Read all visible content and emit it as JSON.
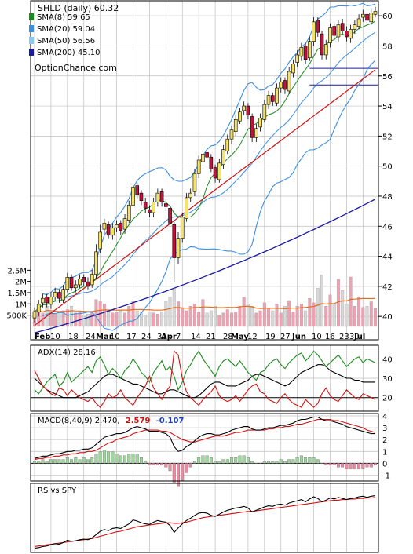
{
  "main": {
    "title": "SHLD (daily) 60.32",
    "watermark": "OptionChance.com",
    "legend": [
      {
        "label": "SMA(8) 59.65",
        "color": "#1a8a1a"
      },
      {
        "label": "SMA(20) 59.04",
        "color": "#3c8ee0"
      },
      {
        "label": "SMA(50) 56.56",
        "color": "#8ec8f0"
      },
      {
        "label": "SMA(200) 45.10",
        "color": "#1a1aa0"
      }
    ]
  },
  "colors": {
    "grid": "#bfbfbf",
    "border": "#000000",
    "sma8": "#1a8a1a",
    "sma20": "#3c8ee0",
    "sma50": "#8ec8f0",
    "sma200": "#1a1aa0",
    "bollinger": "#3c8ee0",
    "ema": "#d01010",
    "volMa": "#e07020",
    "upCandle": "#f4e26a",
    "downCandle": "#c0143c",
    "volUp": "#f0a0b0",
    "volDown": "#d8d8d8",
    "adx": "#000000",
    "plusDI": "#1a8a1a",
    "minusDI": "#d01010",
    "macdUp": "#9ed69e",
    "macdDown": "#e88aa0"
  },
  "chart_data": [
    {
      "type": "candlestick",
      "name": "price",
      "ylim": [
        38.6,
        61.0
      ],
      "y_ticks": [
        40,
        42,
        44,
        46,
        48,
        50,
        52,
        54,
        56,
        58,
        60
      ],
      "volume_ylim": [
        0,
        3000000
      ],
      "volume_ticks": [
        {
          "value": 500000,
          "label": "500K"
        },
        {
          "value": 1000000,
          "label": "1M"
        },
        {
          "value": 1500000,
          "label": "1.5M"
        },
        {
          "value": 2000000,
          "label": "2M"
        },
        {
          "value": 2500000,
          "label": "2.5M"
        }
      ],
      "x_labels": [
        "Feb",
        "10",
        "18",
        "24",
        "Mar",
        "10",
        "17",
        "24",
        "31",
        "Apr",
        "7",
        "14",
        "21",
        "28",
        "May",
        "12",
        "19",
        "27",
        "Jun",
        "10",
        "16",
        "23",
        "30",
        "Jul"
      ],
      "horizontal_levels": [
        56.5,
        55.4
      ],
      "close": [
        40.3,
        40.8,
        41.2,
        40.9,
        41.3,
        41.6,
        41.2,
        41.8,
        42.6,
        41.9,
        42.1,
        42.5,
        42.3,
        42.0,
        42.8,
        44.3,
        45.6,
        46.2,
        45.4,
        45.9,
        46.1,
        45.7,
        46.5,
        47.4,
        48.6,
        48.1,
        47.7,
        47.2,
        46.9,
        47.6,
        48.2,
        47.6,
        47.3,
        46.2,
        43.9,
        45.2,
        46.6,
        47.9,
        48.2,
        49.5,
        50.4,
        50.8,
        50.6,
        49.8,
        49.2,
        50.2,
        51.1,
        51.8,
        52.4,
        53.1,
        53.6,
        54.0,
        53.4,
        51.9,
        52.5,
        53.2,
        54.1,
        54.7,
        54.3,
        55.2,
        55.6,
        55.1,
        56.3,
        56.8,
        57.4,
        57.9,
        57.1,
        58.3,
        59.6,
        58.9,
        57.4,
        58.1,
        59.2,
        58.7,
        59.4,
        59.0,
        58.6,
        59.1,
        59.4,
        59.8,
        60.1,
        59.7,
        60.2,
        60.3
      ],
      "open": [
        39.9,
        40.3,
        40.9,
        41.3,
        40.8,
        41.3,
        41.6,
        41.1,
        41.8,
        42.6,
        41.9,
        42.1,
        42.6,
        42.3,
        42.1,
        42.8,
        44.5,
        45.8,
        46.1,
        45.4,
        45.9,
        46.2,
        45.8,
        46.4,
        47.4,
        48.7,
        48.2,
        47.6,
        47.1,
        46.9,
        47.6,
        48.3,
        47.5,
        47.2,
        46.1,
        43.9,
        45.2,
        46.5,
        47.9,
        48.3,
        49.5,
        50.3,
        50.9,
        50.6,
        49.9,
        49.1,
        50.1,
        51.0,
        51.8,
        52.3,
        53.0,
        53.7,
        54.0,
        53.3,
        51.9,
        52.6,
        53.1,
        54.1,
        54.7,
        54.2,
        55.2,
        55.7,
        55.0,
        56.2,
        56.9,
        57.3,
        58.0,
        57.2,
        58.3,
        59.7,
        58.8,
        57.4,
        58.2,
        59.3,
        58.6,
        59.5,
        59.0,
        58.5,
        59.1,
        59.3,
        59.9,
        60.1,
        59.6,
        60.1
      ],
      "high": [
        40.6,
        41.1,
        41.5,
        41.5,
        41.6,
        41.9,
        41.8,
        42.1,
        42.9,
        42.8,
        42.4,
        42.8,
        42.8,
        42.6,
        43.1,
        44.8,
        46.1,
        46.5,
        46.3,
        46.2,
        46.4,
        46.4,
        46.8,
        47.7,
        48.9,
        48.9,
        48.4,
        47.9,
        47.4,
        47.9,
        48.5,
        48.5,
        47.8,
        47.4,
        46.3,
        45.6,
        46.9,
        48.2,
        48.5,
        49.8,
        50.7,
        51.1,
        51.1,
        50.8,
        50.1,
        50.5,
        51.4,
        52.1,
        52.7,
        53.4,
        53.9,
        54.3,
        54.2,
        53.5,
        52.8,
        53.5,
        54.4,
        55.0,
        54.9,
        55.5,
        55.9,
        55.9,
        56.6,
        57.1,
        57.7,
        58.2,
        58.2,
        58.6,
        59.9,
        59.9,
        59.0,
        58.4,
        59.5,
        59.5,
        59.7,
        59.8,
        59.3,
        59.4,
        59.7,
        60.1,
        60.4,
        60.6,
        60.5,
        60.6
      ],
      "low": [
        39.6,
        40.0,
        40.6,
        40.6,
        40.5,
        41.0,
        40.9,
        40.9,
        41.6,
        41.7,
        41.6,
        41.9,
        42.0,
        41.8,
        41.9,
        42.5,
        44.2,
        45.5,
        45.2,
        45.1,
        45.6,
        45.4,
        45.5,
        46.2,
        47.1,
        47.8,
        47.4,
        46.9,
        46.6,
        46.6,
        47.3,
        47.3,
        47.0,
        46.0,
        42.3,
        43.5,
        44.9,
        46.3,
        47.6,
        48.0,
        49.2,
        50.0,
        50.3,
        49.6,
        48.9,
        48.9,
        49.8,
        50.8,
        51.5,
        52.0,
        52.8,
        53.4,
        53.1,
        51.6,
        51.6,
        52.3,
        52.9,
        53.8,
        54.0,
        54.0,
        54.9,
        54.8,
        54.8,
        55.9,
        56.6,
        57.0,
        56.8,
        57.0,
        58.0,
        58.6,
        57.1,
        57.1,
        57.9,
        58.4,
        58.3,
        58.8,
        58.3,
        58.2,
        58.8,
        59.1,
        59.6,
        59.4,
        59.4,
        59.9
      ],
      "volume": [
        700000,
        650000,
        600000,
        900000,
        650000,
        550000,
        600000,
        700000,
        750000,
        900000,
        600000,
        650000,
        500000,
        550000,
        650000,
        1200000,
        1100000,
        1000000,
        700000,
        600000,
        650000,
        700000,
        600000,
        900000,
        1100000,
        700000,
        600000,
        500000,
        650000,
        600000,
        550000,
        650000,
        1100000,
        1300000,
        1700000,
        1100000,
        800000,
        700000,
        900000,
        1000000,
        650000,
        1200000,
        600000,
        700000,
        900000,
        500000,
        600000,
        750000,
        600000,
        650000,
        900000,
        1300000,
        1000000,
        900000,
        600000,
        700000,
        1050000,
        800000,
        700000,
        1000000,
        600000,
        900000,
        1150000,
        650000,
        900000,
        1000000,
        700000,
        1250000,
        1050000,
        1700000,
        2300000,
        900000,
        1400000,
        1000000,
        2100000,
        1600000,
        1000000,
        2200000,
        900000,
        1300000,
        850000,
        900000,
        1100000,
        800000
      ]
    },
    {
      "type": "line",
      "name": "adx",
      "label": "ADX(14) 28.16",
      "ylim": [
        13,
        47
      ],
      "y_ticks": [
        20,
        30,
        40
      ],
      "highlight_level": 20,
      "series": [
        {
          "key": "adx",
          "values": [
            30,
            28,
            26,
            24,
            23,
            22,
            21,
            20,
            20,
            20,
            20,
            21,
            22,
            23,
            25,
            27,
            29,
            31,
            32,
            32,
            31,
            30,
            29,
            28,
            27,
            27,
            26,
            25,
            24,
            23,
            22,
            22,
            23,
            24,
            24,
            23,
            22,
            21,
            20,
            20,
            21,
            23,
            25,
            27,
            28,
            28,
            27,
            26,
            26,
            26,
            27,
            28,
            29,
            31,
            32,
            32,
            31,
            30,
            29,
            28,
            27,
            26,
            27,
            29,
            31,
            33,
            34,
            35,
            36,
            37,
            37,
            36,
            34,
            33,
            32,
            31,
            30,
            30,
            29,
            29,
            28,
            28,
            28,
            28
          ]
        },
        {
          "key": "plusDI",
          "values": [
            24,
            22,
            25,
            28,
            30,
            32,
            26,
            28,
            33,
            28,
            30,
            32,
            34,
            36,
            33,
            39,
            41,
            37,
            32,
            35,
            33,
            30,
            34,
            36,
            40,
            37,
            33,
            31,
            28,
            33,
            36,
            39,
            34,
            36,
            31,
            24,
            28,
            34,
            37,
            41,
            44,
            40,
            37,
            34,
            31,
            36,
            39,
            40,
            38,
            36,
            39,
            36,
            33,
            31,
            29,
            33,
            34,
            37,
            39,
            40,
            37,
            35,
            38,
            40,
            42,
            43,
            39,
            41,
            44,
            42,
            39,
            36,
            38,
            40,
            42,
            39,
            36,
            38,
            40,
            41,
            38,
            40,
            39,
            38
          ]
        },
        {
          "key": "minusDI",
          "values": [
            34,
            30,
            26,
            24,
            22,
            21,
            25,
            24,
            21,
            24,
            22,
            20,
            19,
            18,
            20,
            17,
            15,
            18,
            22,
            20,
            21,
            24,
            20,
            18,
            16,
            20,
            23,
            26,
            31,
            25,
            22,
            19,
            23,
            26,
            44,
            42,
            30,
            23,
            20,
            18,
            16,
            19,
            21,
            23,
            26,
            21,
            19,
            18,
            19,
            21,
            18,
            21,
            24,
            26,
            27,
            23,
            22,
            19,
            18,
            17,
            20,
            22,
            19,
            17,
            16,
            15,
            19,
            17,
            15,
            17,
            22,
            25,
            21,
            19,
            18,
            21,
            24,
            22,
            20,
            19,
            22,
            21,
            20,
            19
          ]
        }
      ]
    },
    {
      "type": "bar_line",
      "name": "macd",
      "label": "MACD(8,40,9) 2.470,",
      "value_macd": "2.579",
      "value_hist": "-0.107",
      "ylim": [
        -1.5,
        4.2
      ],
      "y_ticks": [
        -1,
        0,
        1,
        2,
        3,
        4
      ],
      "macd": [
        0.4,
        0.5,
        0.6,
        0.6,
        0.7,
        0.8,
        0.8,
        0.9,
        1.0,
        1.0,
        1.1,
        1.1,
        1.2,
        1.2,
        1.3,
        1.6,
        1.9,
        2.2,
        2.3,
        2.4,
        2.5,
        2.5,
        2.6,
        2.8,
        3.0,
        3.1,
        3.0,
        2.9,
        2.7,
        2.7,
        2.7,
        2.6,
        2.5,
        2.2,
        1.4,
        1.0,
        1.1,
        1.4,
        1.6,
        1.9,
        2.2,
        2.4,
        2.5,
        2.5,
        2.4,
        2.4,
        2.5,
        2.6,
        2.8,
        2.9,
        3.0,
        3.1,
        3.1,
        2.9,
        2.8,
        2.8,
        2.9,
        3.0,
        3.0,
        3.1,
        3.2,
        3.2,
        3.3,
        3.4,
        3.6,
        3.7,
        3.7,
        3.8,
        3.9,
        3.9,
        3.7,
        3.6,
        3.6,
        3.5,
        3.4,
        3.3,
        3.1,
        3.0,
        2.9,
        2.8,
        2.7,
        2.6,
        2.5,
        2.5
      ],
      "signal": [
        0.3,
        0.4,
        0.4,
        0.5,
        0.5,
        0.6,
        0.6,
        0.7,
        0.7,
        0.8,
        0.8,
        0.9,
        0.9,
        1.0,
        1.0,
        1.1,
        1.3,
        1.5,
        1.7,
        1.8,
        2.0,
        2.1,
        2.2,
        2.3,
        2.5,
        2.6,
        2.7,
        2.8,
        2.8,
        2.8,
        2.8,
        2.7,
        2.7,
        2.6,
        2.4,
        2.2,
        2.0,
        1.9,
        1.8,
        1.8,
        1.9,
        2.0,
        2.1,
        2.2,
        2.3,
        2.3,
        2.3,
        2.4,
        2.5,
        2.6,
        2.6,
        2.7,
        2.8,
        2.8,
        2.8,
        2.8,
        2.8,
        2.9,
        2.9,
        3.0,
        3.0,
        3.1,
        3.1,
        3.2,
        3.3,
        3.3,
        3.4,
        3.5,
        3.6,
        3.7,
        3.7,
        3.7,
        3.7,
        3.6,
        3.6,
        3.5,
        3.4,
        3.3,
        3.2,
        3.1,
        3.0,
        2.8,
        2.7,
        2.6
      ]
    },
    {
      "type": "line",
      "name": "rs",
      "label": "RS vs SPY",
      "ylim": [
        0,
        1
      ],
      "rs": [
        0.02,
        0.03,
        0.05,
        0.06,
        0.08,
        0.1,
        0.09,
        0.12,
        0.16,
        0.14,
        0.15,
        0.17,
        0.18,
        0.17,
        0.2,
        0.26,
        0.32,
        0.35,
        0.33,
        0.37,
        0.38,
        0.37,
        0.41,
        0.45,
        0.52,
        0.5,
        0.47,
        0.45,
        0.44,
        0.48,
        0.51,
        0.49,
        0.48,
        0.42,
        0.3,
        0.38,
        0.45,
        0.51,
        0.55,
        0.6,
        0.64,
        0.65,
        0.64,
        0.6,
        0.58,
        0.62,
        0.66,
        0.69,
        0.71,
        0.73,
        0.74,
        0.76,
        0.73,
        0.66,
        0.69,
        0.72,
        0.75,
        0.77,
        0.76,
        0.79,
        0.8,
        0.78,
        0.82,
        0.84,
        0.86,
        0.88,
        0.84,
        0.89,
        0.93,
        0.9,
        0.84,
        0.87,
        0.91,
        0.89,
        0.92,
        0.9,
        0.88,
        0.9,
        0.91,
        0.93,
        0.94,
        0.92,
        0.94,
        0.95
      ],
      "rs_avg": [
        0.05,
        0.06,
        0.07,
        0.08,
        0.09,
        0.1,
        0.11,
        0.12,
        0.13,
        0.14,
        0.15,
        0.16,
        0.17,
        0.18,
        0.19,
        0.21,
        0.23,
        0.25,
        0.27,
        0.29,
        0.31,
        0.32,
        0.34,
        0.36,
        0.38,
        0.4,
        0.41,
        0.42,
        0.43,
        0.44,
        0.45,
        0.46,
        0.47,
        0.47,
        0.46,
        0.46,
        0.47,
        0.48,
        0.5,
        0.52,
        0.54,
        0.56,
        0.57,
        0.58,
        0.59,
        0.6,
        0.61,
        0.62,
        0.63,
        0.64,
        0.65,
        0.66,
        0.67,
        0.67,
        0.68,
        0.69,
        0.7,
        0.71,
        0.72,
        0.73,
        0.74,
        0.75,
        0.76,
        0.77,
        0.78,
        0.79,
        0.8,
        0.81,
        0.82,
        0.83,
        0.84,
        0.85,
        0.86,
        0.87,
        0.87,
        0.88,
        0.88,
        0.89,
        0.89,
        0.9,
        0.9,
        0.91,
        0.91,
        0.92
      ]
    }
  ]
}
